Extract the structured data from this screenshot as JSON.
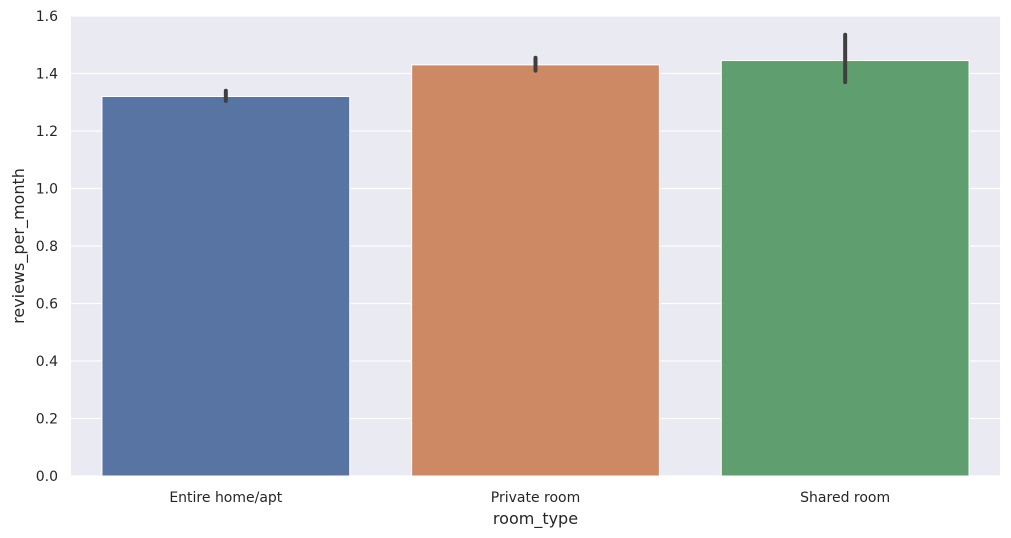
{
  "chart_data": {
    "type": "bar",
    "title": "",
    "xlabel": "room_type",
    "ylabel": "reviews_per_month",
    "categories": [
      "Entire home/apt",
      "Private room",
      "Shared room"
    ],
    "values": [
      1.32,
      1.43,
      1.445
    ],
    "error_bars": [
      [
        1.305,
        1.34
      ],
      [
        1.41,
        1.455
      ],
      [
        1.37,
        1.535
      ]
    ],
    "ylim": [
      0,
      1.6
    ],
    "yticks": [
      "0.0",
      "0.2",
      "0.4",
      "0.6",
      "0.8",
      "1.0",
      "1.2",
      "1.4",
      "1.6"
    ],
    "ytick_values": [
      0,
      0.2,
      0.4,
      0.6,
      0.8,
      1.0,
      1.2,
      1.4,
      1.6
    ],
    "grid": true,
    "colors": {
      "bars": [
        "#5874a3",
        "#cd8963",
        "#5f9e6e"
      ],
      "background": "#eaeaf2",
      "grid": "#ffffff",
      "errorbar": "#3f3f3f"
    }
  }
}
